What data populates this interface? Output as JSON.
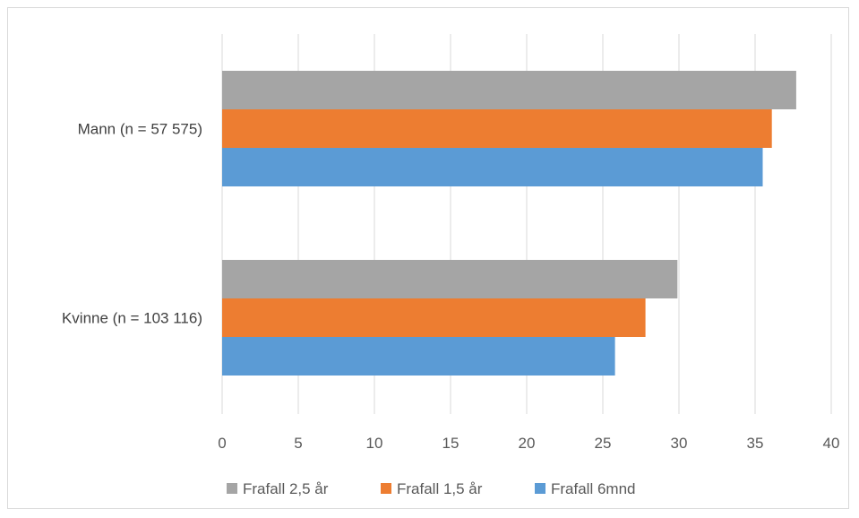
{
  "chart_data": {
    "type": "bar",
    "orientation": "horizontal",
    "categories": [
      "Mann (n = 57 575)",
      "Kvinne (n = 103 116)"
    ],
    "series": [
      {
        "name": "Frafall 2,5 år",
        "color": "#a5a5a5",
        "values": [
          37.7,
          29.9
        ]
      },
      {
        "name": "Frafall 1,5 år",
        "color": "#ed7d31",
        "values": [
          36.1,
          27.8
        ]
      },
      {
        "name": "Frafall 6mnd",
        "color": "#5b9bd5",
        "values": [
          35.5,
          25.8
        ]
      }
    ],
    "xlim": [
      0,
      40
    ],
    "xticks": [
      "0",
      "5",
      "10",
      "15",
      "20",
      "25",
      "30",
      "35",
      "40"
    ],
    "grid": "vertical",
    "legend": "bottom",
    "gridline_color": "#d9d9d9"
  }
}
